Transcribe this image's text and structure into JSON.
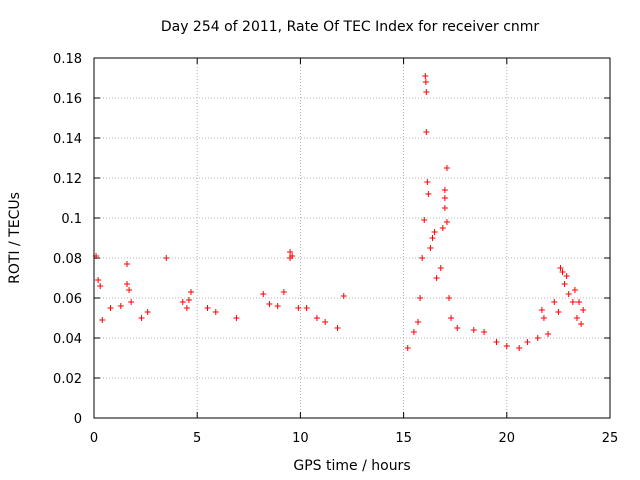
{
  "chart_data": {
    "type": "scatter",
    "title": "Day 254 of 2011, Rate Of TEC Index for receiver cnmr",
    "xlabel": "GPS time / hours",
    "ylabel": "ROTI / TECUs",
    "xlim": [
      0,
      25
    ],
    "ylim": [
      0,
      0.18
    ],
    "x_ticks": [
      "0",
      "5",
      "10",
      "15",
      "20",
      "25"
    ],
    "y_ticks": [
      "0",
      "0.02",
      "0.04",
      "0.06",
      "0.08",
      "0.1",
      "0.12",
      "0.14",
      "0.16",
      "0.18"
    ],
    "grid": true,
    "grid_style": "dotted",
    "marker": "+",
    "color": "#ff0000",
    "legend": false,
    "series": [
      {
        "points": [
          [
            0.1,
            0.081
          ],
          [
            0.2,
            0.069
          ],
          [
            0.3,
            0.066
          ],
          [
            0.4,
            0.049
          ],
          [
            0.8,
            0.055
          ],
          [
            1.3,
            0.056
          ],
          [
            1.6,
            0.077
          ],
          [
            1.6,
            0.067
          ],
          [
            1.7,
            0.064
          ],
          [
            1.8,
            0.058
          ],
          [
            2.3,
            0.05
          ],
          [
            2.6,
            0.053
          ],
          [
            3.5,
            0.08
          ],
          [
            4.3,
            0.058
          ],
          [
            4.5,
            0.055
          ],
          [
            4.6,
            0.059
          ],
          [
            4.7,
            0.063
          ],
          [
            5.5,
            0.055
          ],
          [
            5.9,
            0.053
          ],
          [
            6.9,
            0.05
          ],
          [
            8.2,
            0.062
          ],
          [
            8.5,
            0.057
          ],
          [
            8.9,
            0.056
          ],
          [
            9.2,
            0.063
          ],
          [
            9.5,
            0.083
          ],
          [
            9.5,
            0.08
          ],
          [
            9.6,
            0.081
          ],
          [
            9.9,
            0.055
          ],
          [
            10.3,
            0.055
          ],
          [
            10.8,
            0.05
          ],
          [
            11.2,
            0.048
          ],
          [
            12.1,
            0.061
          ],
          [
            11.8,
            0.045
          ],
          [
            15.2,
            0.035
          ],
          [
            15.5,
            0.043
          ],
          [
            15.7,
            0.048
          ],
          [
            15.8,
            0.06
          ],
          [
            15.9,
            0.08
          ],
          [
            16.0,
            0.099
          ],
          [
            16.05,
            0.171
          ],
          [
            16.08,
            0.168
          ],
          [
            16.1,
            0.163
          ],
          [
            16.1,
            0.143
          ],
          [
            16.15,
            0.118
          ],
          [
            16.2,
            0.112
          ],
          [
            16.3,
            0.085
          ],
          [
            16.4,
            0.09
          ],
          [
            16.5,
            0.093
          ],
          [
            16.6,
            0.07
          ],
          [
            16.8,
            0.075
          ],
          [
            16.9,
            0.095
          ],
          [
            17.0,
            0.11
          ],
          [
            17.0,
            0.114
          ],
          [
            17.0,
            0.105
          ],
          [
            17.1,
            0.125
          ],
          [
            17.1,
            0.098
          ],
          [
            17.2,
            0.06
          ],
          [
            17.3,
            0.05
          ],
          [
            17.6,
            0.045
          ],
          [
            18.4,
            0.044
          ],
          [
            18.9,
            0.043
          ],
          [
            19.5,
            0.038
          ],
          [
            20.0,
            0.036
          ],
          [
            20.6,
            0.035
          ],
          [
            21.0,
            0.038
          ],
          [
            21.5,
            0.04
          ],
          [
            21.7,
            0.054
          ],
          [
            21.8,
            0.05
          ],
          [
            22.0,
            0.042
          ],
          [
            22.3,
            0.058
          ],
          [
            22.5,
            0.053
          ],
          [
            22.6,
            0.075
          ],
          [
            22.7,
            0.073
          ],
          [
            22.8,
            0.067
          ],
          [
            22.9,
            0.071
          ],
          [
            23.0,
            0.062
          ],
          [
            23.2,
            0.058
          ],
          [
            23.3,
            0.064
          ],
          [
            23.4,
            0.05
          ],
          [
            23.5,
            0.058
          ],
          [
            23.6,
            0.047
          ],
          [
            23.7,
            0.054
          ]
        ]
      }
    ]
  }
}
